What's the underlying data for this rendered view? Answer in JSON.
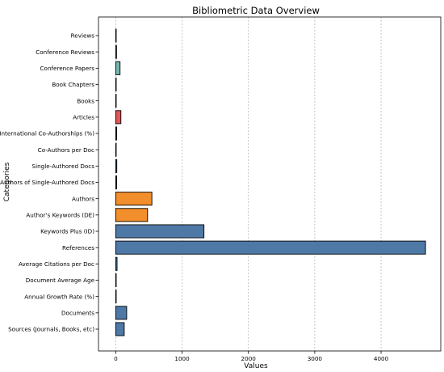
{
  "chart_data": {
    "type": "bar",
    "orientation": "horizontal",
    "title": "Bibliometric Data Overview",
    "xlabel": "Values",
    "ylabel": "Categories",
    "xlim": [
      -260,
      4900
    ],
    "xticks": [
      0,
      1000,
      2000,
      3000,
      4000
    ],
    "grid": "x-dashed",
    "categories": [
      "Sources (Journals, Books, etc)",
      "Documents",
      "Annual Growth Rate (%)",
      "Document Average Age",
      "Average Citations per Doc",
      "References",
      "Keywords Plus (ID)",
      "Author's Keywords (DE)",
      "Authors",
      "Authors of Single-Authored Docs",
      "Single-Authored Docs",
      "Co-Authors per Doc",
      "International Co-Authorships (%)",
      "Articles",
      "Books",
      "Book Chapters",
      "Conference Papers",
      "Conference Reviews",
      "Reviews"
    ],
    "values": [
      128,
      165,
      2,
      6,
      20,
      4670,
      1330,
      480,
      545,
      14,
      16,
      5,
      14,
      78,
      1,
      3,
      65,
      12,
      6
    ],
    "colors": [
      "#4e79a7",
      "#4e79a7",
      "#4e79a7",
      "#4e79a7",
      "#4e79a7",
      "#4e79a7",
      "#4e79a7",
      "#f28e2b",
      "#f28e2b",
      "#4e79a7",
      "#4e79a7",
      "#4e79a7",
      "#4e79a7",
      "#e15759",
      "#4e79a7",
      "#4e79a7",
      "#76b7b2",
      "#4e79a7",
      "#4e79a7"
    ]
  }
}
